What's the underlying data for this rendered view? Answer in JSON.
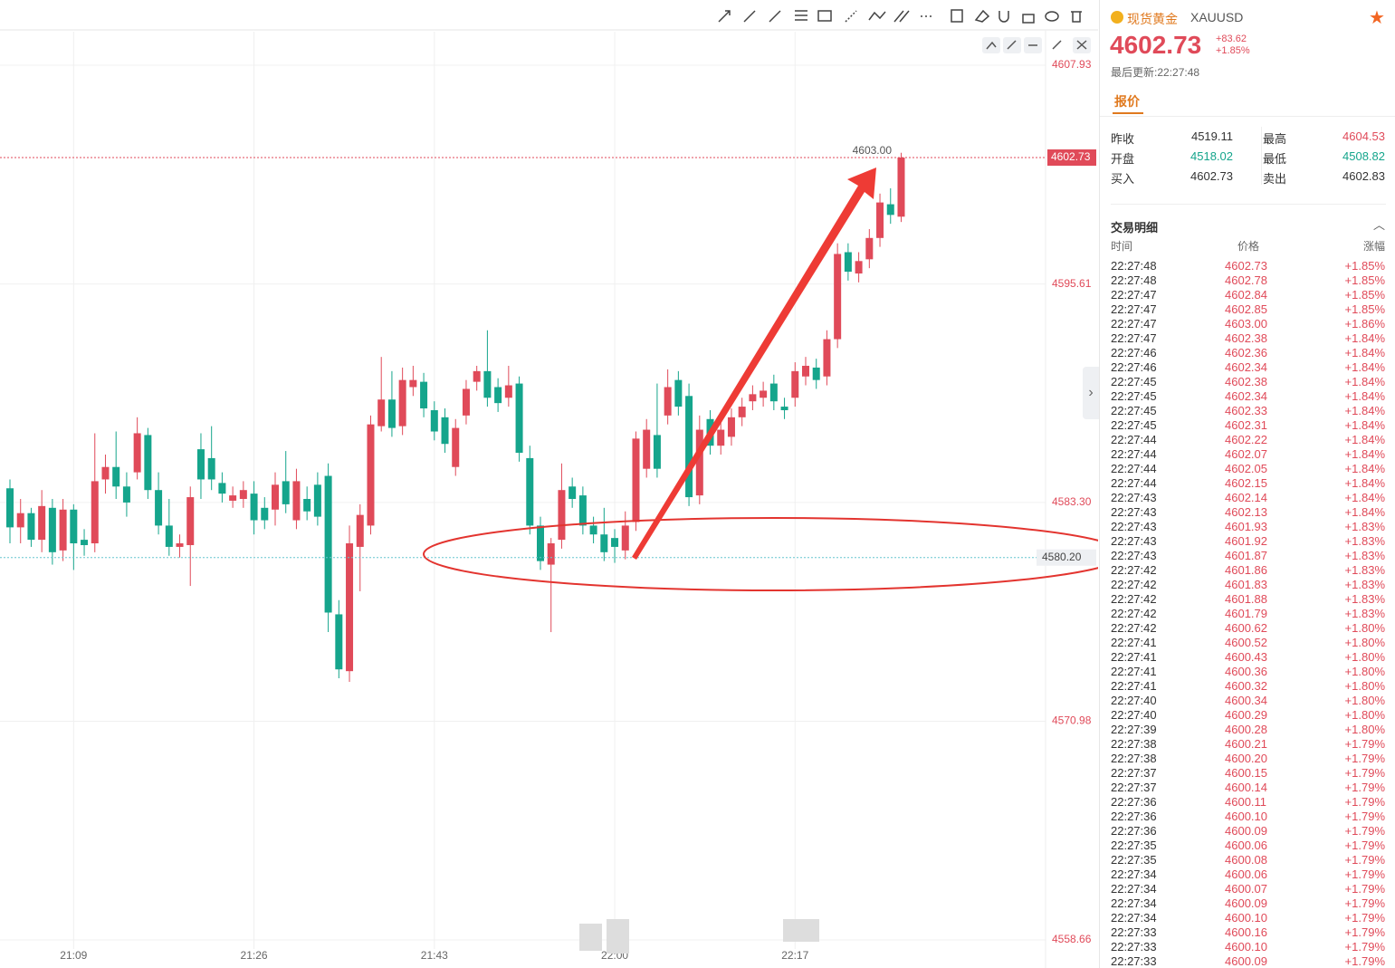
{
  "chart_data": {
    "type": "candlestick",
    "categories": [
      null,
      null,
      null,
      null,
      null,
      null,
      "21:09",
      null,
      null,
      null,
      null,
      null,
      null,
      null,
      null,
      null,
      null,
      null,
      null,
      null,
      null,
      null,
      null,
      "21:26",
      null,
      null,
      null,
      null,
      null,
      null,
      null,
      null,
      null,
      null,
      null,
      null,
      null,
      null,
      null,
      null,
      "21:43",
      null,
      null,
      null,
      null,
      null,
      null,
      null,
      null,
      null,
      null,
      null,
      null,
      null,
      null,
      null,
      null,
      "22:00",
      null,
      null,
      null,
      null,
      null,
      null,
      null,
      null,
      null,
      null,
      null,
      null,
      null,
      null,
      null,
      null,
      "22:17",
      null,
      null,
      null,
      null,
      null,
      null,
      null,
      null,
      null,
      null
    ],
    "open": [
      4584.1,
      4581.9,
      4582.7,
      4581.2,
      4583.0,
      4580.6,
      4582.9,
      4581.2,
      4581.0,
      4584.6,
      4585.3,
      4584.2,
      4585.0,
      4587.1,
      4584.0,
      4582.0,
      4580.8,
      4580.9,
      4586.3,
      4585.8,
      4584.4,
      4583.4,
      4583.5,
      4583.8,
      4583.0,
      4582.9,
      4584.5,
      4582.3,
      4583.5,
      4584.3,
      4584.8,
      4577.0,
      4573.8,
      4580.8,
      4582.0,
      4587.6,
      4589.1,
      4587.6,
      4589.8,
      4590.1,
      4588.5,
      4588.1,
      4585.3,
      4588.2,
      4590.1,
      4590.7,
      4589.8,
      4589.2,
      4590.0,
      4585.8,
      4582.0,
      4579.8,
      4581.2,
      4584.2,
      4583.7,
      4582.0,
      4581.5,
      4581.3,
      4580.6,
      4582.2,
      4585.2,
      4587.1,
      4588.2,
      4590.2,
      4589.3,
      4583.7,
      4588.0,
      4586.5,
      4587.0,
      4588.1,
      4589.0,
      4589.2,
      4590.0,
      4588.7,
      4589.2,
      4590.4,
      4590.9,
      4590.4,
      4592.5,
      4597.4,
      4596.2,
      4597.0,
      4598.2,
      4600.1,
      4599.4
    ],
    "high": [
      4584.6,
      4583.5,
      4583.0,
      4584.0,
      4583.5,
      4583.5,
      4583.2,
      4581.8,
      4587.2,
      4586.0,
      4587.3,
      4585.0,
      4588.1,
      4587.5,
      4585.0,
      4583.5,
      4581.5,
      4584.2,
      4587.2,
      4587.6,
      4585.0,
      4584.2,
      4584.5,
      4584.5,
      4583.6,
      4585.0,
      4586.2,
      4585.2,
      4584.2,
      4585.0,
      4585.5,
      4577.8,
      4582.0,
      4583.2,
      4588.2,
      4591.5,
      4590.7,
      4590.9,
      4591.0,
      4590.6,
      4589.0,
      4588.6,
      4588.0,
      4590.2,
      4591.0,
      4593.0,
      4590.3,
      4591.0,
      4590.4,
      4586.5,
      4582.5,
      4581.3,
      4585.5,
      4584.7,
      4584.2,
      4582.5,
      4583.0,
      4581.8,
      4582.8,
      4587.3,
      4588.0,
      4590.0,
      4590.8,
      4590.7,
      4590.0,
      4588.2,
      4588.5,
      4587.9,
      4588.6,
      4589.2,
      4589.9,
      4590.1,
      4590.5,
      4589.2,
      4591.2,
      4591.5,
      4591.4,
      4593.0,
      4597.9,
      4597.9,
      4597.4,
      4598.7,
      4600.7,
      4601.0,
      4603.0
    ],
    "low": [
      4581.0,
      4581.0,
      4580.8,
      4580.5,
      4579.8,
      4580.0,
      4579.5,
      4580.3,
      4580.5,
      4583.8,
      4583.5,
      4582.5,
      4584.6,
      4583.5,
      4581.5,
      4580.3,
      4580.2,
      4578.6,
      4583.5,
      4584.0,
      4583.3,
      4583.0,
      4583.0,
      4581.5,
      4581.8,
      4582.0,
      4582.7,
      4581.8,
      4582.3,
      4582.0,
      4576.0,
      4573.4,
      4573.2,
      4578.3,
      4581.5,
      4587.3,
      4587.0,
      4587.1,
      4589.3,
      4588.1,
      4586.8,
      4586.1,
      4584.8,
      4587.7,
      4589.6,
      4588.7,
      4588.4,
      4588.7,
      4585.6,
      4581.5,
      4579.5,
      4576.0,
      4580.7,
      4583.0,
      4581.5,
      4581.0,
      4580.0,
      4579.9,
      4580.1,
      4581.7,
      4584.7,
      4584.7,
      4587.7,
      4588.2,
      4583.1,
      4583.2,
      4586.0,
      4586.0,
      4586.5,
      4587.6,
      4588.5,
      4588.7,
      4588.5,
      4588.0,
      4588.7,
      4589.9,
      4589.7,
      4589.9,
      4592.0,
      4595.8,
      4595.7,
      4596.5,
      4597.7,
      4599.0,
      4599.1
    ],
    "close": [
      4581.9,
      4582.7,
      4581.2,
      4583.1,
      4580.5,
      4582.9,
      4581.0,
      4580.9,
      4584.5,
      4585.3,
      4584.2,
      4583.3,
      4587.2,
      4584.0,
      4582.0,
      4580.8,
      4581.0,
      4583.6,
      4584.6,
      4584.6,
      4583.8,
      4583.7,
      4584.0,
      4582.3,
      4582.3,
      4584.3,
      4583.2,
      4584.5,
      4582.8,
      4582.5,
      4577.1,
      4573.9,
      4581.0,
      4582.6,
      4587.7,
      4589.1,
      4587.5,
      4590.2,
      4590.2,
      4588.6,
      4587.3,
      4586.6,
      4587.5,
      4589.7,
      4590.7,
      4589.2,
      4588.9,
      4589.9,
      4586.1,
      4582.0,
      4580.0,
      4581.0,
      4584.0,
      4583.5,
      4582.0,
      4581.5,
      4580.5,
      4580.8,
      4582.0,
      4586.9,
      4587.4,
      4585.2,
      4589.8,
      4588.7,
      4583.6,
      4587.4,
      4586.5,
      4587.4,
      4588.1,
      4588.7,
      4589.4,
      4589.6,
      4589.0,
      4588.5,
      4590.7,
      4591.0,
      4590.2,
      4592.5,
      4597.3,
      4596.3,
      4596.9,
      4598.2,
      4600.2,
      4599.5,
      4602.73
    ],
    "up_color": "#e04a59",
    "down_color": "#15a58c",
    "ylim": [
      4558.15,
      4609.82
    ],
    "yticks": [
      4607.93,
      4595.61,
      {
        "value": 4583.3,
        "label": "4583.30"
      },
      4570.98,
      4558.66
    ],
    "grid": true,
    "price_lines": [
      {
        "value": 4602.73,
        "color": "#e04a59"
      },
      {
        "value": 4580.2,
        "label": "4580.20",
        "color": "#67c6cf"
      }
    ],
    "high_marker": {
      "value": 4603,
      "label": "4603.00"
    }
  },
  "quote": {
    "name": "现货黄金",
    "symbol": "XAUUSD",
    "price": "4602.73",
    "change": "+83.62",
    "change_pct": "+1.85%",
    "updated": "最后更新:22:27:48",
    "tab": "报价",
    "fields": [
      [
        "昨收",
        "4519.11"
      ],
      [
        "最高",
        "4604.53"
      ],
      [
        "开盘",
        "4518.02"
      ],
      [
        "最低",
        "4508.82"
      ],
      [
        "买入",
        "4602.73"
      ],
      [
        "卖出",
        "4602.83"
      ]
    ]
  },
  "trades": {
    "title": "交易明细",
    "headers": [
      "时间",
      "价格",
      "涨幅"
    ],
    "rows": [
      [
        "22:27:48",
        "4602.73",
        "+1.85%"
      ],
      [
        "22:27:48",
        "4602.78",
        "+1.85%"
      ],
      [
        "22:27:47",
        "4602.84",
        "+1.85%"
      ],
      [
        "22:27:47",
        "4602.85",
        "+1.85%"
      ],
      [
        "22:27:47",
        "4603.00",
        "+1.86%"
      ],
      [
        "22:27:47",
        "4602.38",
        "+1.84%"
      ],
      [
        "22:27:46",
        "4602.36",
        "+1.84%"
      ],
      [
        "22:27:46",
        "4602.34",
        "+1.84%"
      ],
      [
        "22:27:45",
        "4602.38",
        "+1.84%"
      ],
      [
        "22:27:45",
        "4602.34",
        "+1.84%"
      ],
      [
        "22:27:45",
        "4602.33",
        "+1.84%"
      ],
      [
        "22:27:45",
        "4602.31",
        "+1.84%"
      ],
      [
        "22:27:44",
        "4602.22",
        "+1.84%"
      ],
      [
        "22:27:44",
        "4602.07",
        "+1.84%"
      ],
      [
        "22:27:44",
        "4602.05",
        "+1.84%"
      ],
      [
        "22:27:44",
        "4602.15",
        "+1.84%"
      ],
      [
        "22:27:43",
        "4602.14",
        "+1.84%"
      ],
      [
        "22:27:43",
        "4602.13",
        "+1.84%"
      ],
      [
        "22:27:43",
        "4601.93",
        "+1.83%"
      ],
      [
        "22:27:43",
        "4601.92",
        "+1.83%"
      ],
      [
        "22:27:43",
        "4601.87",
        "+1.83%"
      ],
      [
        "22:27:42",
        "4601.86",
        "+1.83%"
      ],
      [
        "22:27:42",
        "4601.83",
        "+1.83%"
      ],
      [
        "22:27:42",
        "4601.88",
        "+1.83%"
      ],
      [
        "22:27:42",
        "4601.79",
        "+1.83%"
      ],
      [
        "22:27:42",
        "4600.62",
        "+1.80%"
      ],
      [
        "22:27:41",
        "4600.52",
        "+1.80%"
      ],
      [
        "22:27:41",
        "4600.43",
        "+1.80%"
      ],
      [
        "22:27:41",
        "4600.36",
        "+1.80%"
      ],
      [
        "22:27:41",
        "4600.32",
        "+1.80%"
      ],
      [
        "22:27:40",
        "4600.34",
        "+1.80%"
      ],
      [
        "22:27:40",
        "4600.29",
        "+1.80%"
      ],
      [
        "22:27:39",
        "4600.28",
        "+1.80%"
      ],
      [
        "22:27:38",
        "4600.21",
        "+1.79%"
      ],
      [
        "22:27:38",
        "4600.20",
        "+1.79%"
      ],
      [
        "22:27:37",
        "4600.15",
        "+1.79%"
      ],
      [
        "22:27:37",
        "4600.14",
        "+1.79%"
      ],
      [
        "22:27:36",
        "4600.11",
        "+1.79%"
      ],
      [
        "22:27:36",
        "4600.10",
        "+1.79%"
      ],
      [
        "22:27:36",
        "4600.09",
        "+1.79%"
      ],
      [
        "22:27:35",
        "4600.06",
        "+1.79%"
      ],
      [
        "22:27:35",
        "4600.08",
        "+1.79%"
      ],
      [
        "22:27:34",
        "4600.06",
        "+1.79%"
      ],
      [
        "22:27:34",
        "4600.07",
        "+1.79%"
      ],
      [
        "22:27:34",
        "4600.09",
        "+1.79%"
      ],
      [
        "22:27:34",
        "4600.10",
        "+1.79%"
      ],
      [
        "22:27:33",
        "4600.16",
        "+1.79%"
      ],
      [
        "22:27:33",
        "4600.10",
        "+1.79%"
      ],
      [
        "22:27:33",
        "4600.09",
        "+1.79%"
      ]
    ]
  }
}
